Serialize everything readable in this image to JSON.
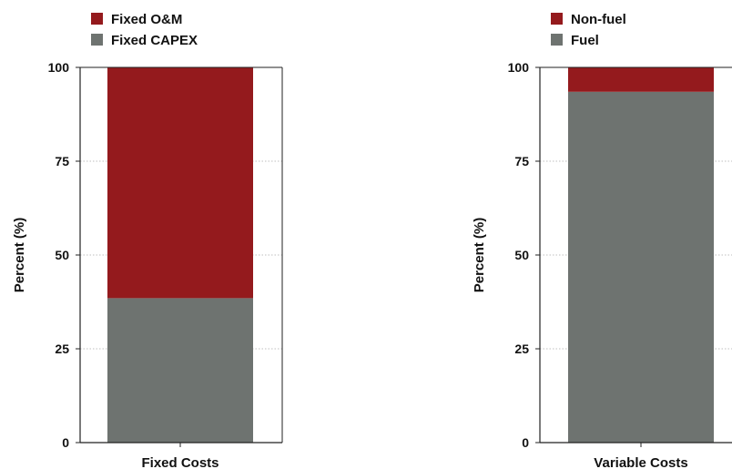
{
  "colors": {
    "red": "#941a1d",
    "gray": "#6e7370",
    "grid": "#bfbfbf",
    "axis": "#222222"
  },
  "chart_data": [
    {
      "type": "bar",
      "stacked": true,
      "categories": [
        "Fixed Costs"
      ],
      "series": [
        {
          "name": "Fixed CAPEX",
          "values": [
            38.5
          ],
          "color": "gray"
        },
        {
          "name": "Fixed O&M",
          "values": [
            61.5
          ],
          "color": "red"
        }
      ],
      "legend_order": [
        "Fixed O&M",
        "Fixed CAPEX"
      ],
      "ylabel": "Percent (%)",
      "ylim": [
        0,
        100
      ],
      "yticks": [
        0,
        25,
        50,
        75,
        100
      ],
      "grid": "dotted horizontal",
      "legend_placement": "top-left"
    },
    {
      "type": "bar",
      "stacked": true,
      "categories": [
        "Variable Costs"
      ],
      "series": [
        {
          "name": "Fuel",
          "values": [
            93.5
          ],
          "color": "gray"
        },
        {
          "name": "Non-fuel",
          "values": [
            6.5
          ],
          "color": "red"
        }
      ],
      "legend_order": [
        "Non-fuel",
        "Fuel"
      ],
      "ylabel": "Percent (%)",
      "ylim": [
        0,
        100
      ],
      "yticks": [
        0,
        25,
        50,
        75,
        100
      ],
      "grid": "dotted horizontal",
      "legend_placement": "top-left"
    }
  ]
}
